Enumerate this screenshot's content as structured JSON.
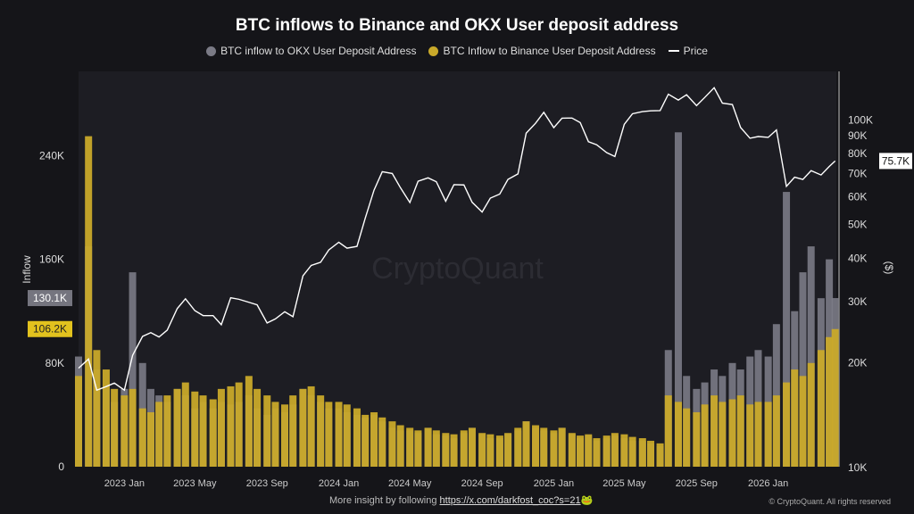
{
  "chart_data": {
    "type": "bar+line",
    "title": "BTC inflows to Binance and OKX User deposit address",
    "legend_placement": "top",
    "series": [
      {
        "name": "BTC inflow to OKX User Deposit Address",
        "color": "#7b7b86",
        "type": "bar",
        "axis": "left",
        "values": [
          85,
          170,
          75,
          60,
          50,
          60,
          150,
          80,
          60,
          55,
          50,
          60,
          55,
          45,
          50,
          45,
          50,
          48,
          50,
          55,
          45,
          40,
          45,
          42,
          48,
          60,
          55,
          50,
          45,
          45,
          42,
          40,
          38,
          40,
          35,
          30,
          28,
          28,
          26,
          30,
          25,
          24,
          22,
          26,
          30,
          25,
          22,
          22,
          25,
          28,
          35,
          30,
          28,
          26,
          30,
          25,
          22,
          24,
          20,
          22,
          24,
          22,
          20,
          20,
          18,
          16,
          90,
          258,
          70,
          60,
          65,
          75,
          70,
          80,
          75,
          85,
          90,
          85,
          110,
          212,
          120,
          150,
          170,
          130,
          160,
          130.1
        ]
      },
      {
        "name": "BTC Inflow to Binance User Deposit Address",
        "color": "#c9a92a",
        "type": "bar",
        "axis": "left",
        "values": [
          70,
          255,
          90,
          75,
          60,
          55,
          60,
          45,
          42,
          50,
          55,
          60,
          65,
          58,
          55,
          52,
          60,
          62,
          65,
          70,
          60,
          55,
          50,
          48,
          55,
          60,
          62,
          55,
          50,
          50,
          48,
          45,
          40,
          42,
          38,
          35,
          32,
          30,
          28,
          30,
          28,
          26,
          25,
          28,
          30,
          26,
          25,
          24,
          26,
          30,
          35,
          32,
          30,
          28,
          30,
          26,
          24,
          25,
          22,
          24,
          26,
          25,
          23,
          22,
          20,
          18,
          55,
          50,
          45,
          42,
          48,
          55,
          50,
          52,
          55,
          48,
          50,
          50,
          55,
          65,
          75,
          70,
          80,
          90,
          100,
          106.2
        ]
      },
      {
        "name": "Price",
        "color": "#ffffff",
        "type": "line",
        "axis": "right",
        "values": [
          19.2,
          20.4,
          16.6,
          17.0,
          17.4,
          16.6,
          20.9,
          23.7,
          24.3,
          23.6,
          24.7,
          28.5,
          30.4,
          28.1,
          27.2,
          27.2,
          25.6,
          30.6,
          30.3,
          29.7,
          29.2,
          25.9,
          26.6,
          27.9,
          27.0,
          35.4,
          37.9,
          38.7,
          42.0,
          44.2,
          42.5,
          43.0,
          51.8,
          62.4,
          70.5,
          69.7,
          63.4,
          57.5,
          66.2,
          67.7,
          66.0,
          58.0,
          64.7,
          64.6,
          57.6,
          54.0,
          59.2,
          60.8,
          67.0,
          69.5,
          91.0,
          97.2,
          104.5,
          94.4,
          100.5,
          100.6,
          97.6,
          86.0,
          84.3,
          80.0,
          78.0,
          96.5,
          103.5,
          105.0,
          105.5,
          105.7,
          117.8,
          113.3,
          117.4,
          109.2,
          115.3,
          123.0,
          111.0,
          110.0,
          94.5,
          88.0,
          89.0,
          88.5,
          93.0,
          64.0,
          68.0,
          67.0,
          71.0,
          69.0,
          73.0,
          75.7
        ]
      }
    ],
    "x": [
      "2022-10-15",
      "2022-11-01",
      "2022-11-15",
      "2022-12-01",
      "2022-12-15",
      "2023-01-01",
      "2023-01-15",
      "2023-02-01",
      "2023-02-15",
      "2023-03-01",
      "2023-03-15",
      "2023-04-01",
      "2023-04-15",
      "2023-05-01",
      "2023-05-15",
      "2023-06-01",
      "2023-06-15",
      "2023-07-01",
      "2023-07-15",
      "2023-08-01",
      "2023-08-15",
      "2023-09-01",
      "2023-09-15",
      "2023-10-01",
      "2023-10-15",
      "2023-11-01",
      "2023-11-15",
      "2023-12-01",
      "2023-12-15",
      "2024-01-01",
      "2024-01-15",
      "2024-02-01",
      "2024-02-15",
      "2024-03-01",
      "2024-03-15",
      "2024-04-01",
      "2024-04-15",
      "2024-05-01",
      "2024-05-15",
      "2024-06-01",
      "2024-06-15",
      "2024-07-01",
      "2024-07-15",
      "2024-08-01",
      "2024-08-15",
      "2024-09-01",
      "2024-09-15",
      "2024-10-01",
      "2024-10-15",
      "2024-11-01",
      "2024-11-15",
      "2024-12-01",
      "2024-12-15",
      "2025-01-01",
      "2025-01-15",
      "2025-02-01",
      "2025-02-15",
      "2025-03-01",
      "2025-03-15",
      "2025-04-01",
      "2025-04-15",
      "2025-05-01",
      "2025-05-15",
      "2025-06-01",
      "2025-06-15",
      "2025-07-01",
      "2025-07-15",
      "2025-08-01",
      "2025-08-15",
      "2025-09-01",
      "2025-09-15",
      "2025-10-01",
      "2025-10-15",
      "2025-11-01",
      "2025-11-15",
      "2025-12-01",
      "2025-12-15",
      "2026-01-01",
      "2026-01-15",
      "2026-02-01",
      "2026-02-15",
      "2026-03-01",
      "2026-03-15",
      "2026-04-01",
      "2026-04-15",
      "2026-04-25"
    ],
    "x_range": [
      "2022-10-15",
      "2026-04-27"
    ],
    "x_ticks": [
      "2023 Jan",
      "2023 May",
      "2023 Sep",
      "2024 Jan",
      "2024 May",
      "2024 Sep",
      "2025 Jan",
      "2025 May",
      "2025 Sep",
      "2026 Jan"
    ],
    "x_tick_dates": [
      "2023-01-01",
      "2023-05-01",
      "2023-09-01",
      "2024-01-01",
      "2024-05-01",
      "2024-09-01",
      "2025-01-01",
      "2025-05-01",
      "2025-09-01",
      "2026-01-01"
    ],
    "y_left": {
      "label": "Inflow",
      "ticks": [
        0,
        80,
        160,
        240
      ],
      "tick_labels": [
        "0",
        "80K",
        "160K",
        "240K"
      ],
      "range": [
        0,
        305
      ],
      "unit": "K BTC"
    },
    "y_right": {
      "label": "($)",
      "scale": "log",
      "range": [
        10,
        137
      ],
      "ticks": [
        10,
        20,
        30,
        40,
        50,
        60,
        70,
        80,
        90,
        100
      ],
      "tick_labels": [
        "10K",
        "20K",
        "30K",
        "40K",
        "50K",
        "60K",
        "70K",
        "80K",
        "90K",
        "100K"
      ]
    },
    "last_values": {
      "okx": "130.1K",
      "binance": "106.2K",
      "price": "75.7K"
    },
    "grid": false,
    "watermark": "CryptoQuant"
  },
  "footer": {
    "text": "More insight by following ",
    "link": "https://x.com/darkfost_coc?s=21",
    "emoji": "🐸",
    "copyright": "© CryptoQuant. All rights reserved"
  }
}
